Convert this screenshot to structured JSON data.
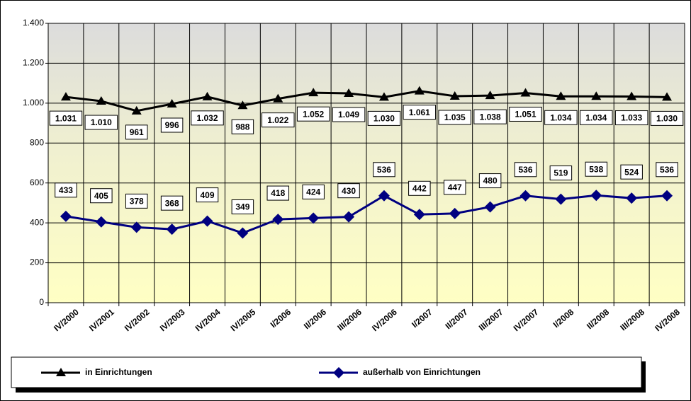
{
  "chart_data": {
    "type": "line",
    "categories": [
      "IV/2000",
      "IV/2001",
      "IV/2002",
      "IV/2003",
      "IV/2004",
      "IV/2005",
      "I/2006",
      "II/2006",
      "III/2006",
      "IV/2006",
      "I/2007",
      "II/2007",
      "III/2007",
      "IV/2007",
      "I/2008",
      "II/2008",
      "III/2008",
      "IV/2008"
    ],
    "series": [
      {
        "name": "in Einrichtungen",
        "color": "#000000",
        "marker": "triangle",
        "values": [
          1031,
          1010,
          961,
          996,
          1032,
          988,
          1022,
          1052,
          1049,
          1030,
          1061,
          1035,
          1038,
          1051,
          1034,
          1034,
          1033,
          1030
        ],
        "value_labels": [
          "1.031",
          "1.010",
          "961",
          "996",
          "1.032",
          "988",
          "1.022",
          "1.052",
          "1.049",
          "1.030",
          "1.061",
          "1.035",
          "1.038",
          "1.051",
          "1.034",
          "1.034",
          "1.033",
          "1.030"
        ]
      },
      {
        "name": "außerhalb von Einrichtungen",
        "color": "#000080",
        "marker": "diamond",
        "values": [
          433,
          405,
          378,
          368,
          409,
          349,
          418,
          424,
          430,
          536,
          442,
          447,
          480,
          536,
          519,
          538,
          524,
          536
        ]
      }
    ],
    "ylim": [
      0,
      1400
    ],
    "yticks": [
      0,
      200,
      400,
      600,
      800,
      {
        "value": 1000,
        "label": "1.000"
      },
      {
        "value": 1200,
        "label": "1.200"
      },
      {
        "value": 1400,
        "label": "1.400"
      }
    ],
    "grid": true,
    "legend": "bottom"
  }
}
